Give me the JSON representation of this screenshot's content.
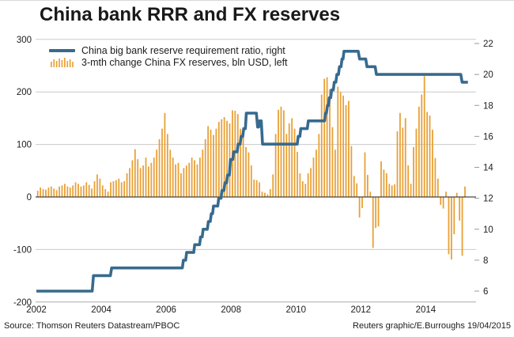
{
  "title": "China bank RRR and FX reserves",
  "source": "Source: Thomson Reuters Datastream/PBOC",
  "credit": "Reuters graphic/E.Burroughs 19/04/2015",
  "legend": [
    {
      "label": "China big bank reserve requirement ratio, right",
      "color": "#376a8e",
      "swatch": "line-icon"
    },
    {
      "label": "3-mth change China FX reserves, bln USD, left",
      "color": "#e8a138",
      "swatch": "bars-icon"
    }
  ],
  "colors": {
    "line": "#376a8e",
    "bars": "#e8a138",
    "grid": "#cacaca",
    "axis_line": "#ababab",
    "zero_line": "#1a1a1a",
    "tick_mark": "#999999",
    "text": "#1c1c1c"
  },
  "chart_data": {
    "type": "bar",
    "title": "China bank RRR and FX reserves",
    "x_axis": {
      "range": [
        2002,
        2015.55
      ],
      "ticks": [
        2002,
        2004,
        2006,
        2008,
        2010,
        2012,
        2014
      ],
      "grid": false
    },
    "left_axis": {
      "label": "3-mth change China FX reserves, bln USD",
      "range": [
        -200,
        300
      ],
      "ticks": [
        300,
        200,
        100,
        0,
        -100,
        -200
      ],
      "grid": true
    },
    "right_axis": {
      "label": "China big bank reserve requirement ratio, %",
      "range": [
        6,
        22
      ],
      "ticks": [
        22,
        20,
        18,
        16,
        14,
        12,
        10,
        8,
        6
      ],
      "grid": false
    },
    "series": [
      {
        "name": "3-mth change China FX reserves, bln USD",
        "type": "bar",
        "axis": "left",
        "color": "#e8a138",
        "start_year": 2002,
        "interval_months": 1,
        "values": [
          12,
          18,
          15,
          14,
          18,
          20,
          16,
          13,
          20,
          22,
          25,
          20,
          18,
          22,
          28,
          25,
          20,
          22,
          28,
          23,
          16,
          30,
          43,
          35,
          22,
          15,
          10,
          28,
          30,
          32,
          35,
          28,
          30,
          45,
          55,
          70,
          91,
          72,
          55,
          60,
          75,
          58,
          65,
          75,
          90,
          110,
          130,
          160,
          120,
          90,
          75,
          62,
          65,
          45,
          55,
          60,
          65,
          75,
          70,
          62,
          75,
          90,
          110,
          135,
          128,
          118,
          130,
          143,
          148,
          152,
          145,
          140,
          165,
          164,
          158,
          130,
          122,
          95,
          85,
          60,
          33,
          32,
          28,
          10,
          8,
          5,
          15,
          43,
          120,
          166,
          172,
          165,
          120,
          140,
          150,
          130,
          86,
          45,
          30,
          25,
          45,
          55,
          75,
          90,
          120,
          195,
          225,
          228,
          205,
          133,
          90,
          210,
          200,
          193,
          175,
          183,
          97,
          40,
          26,
          -39,
          -21,
          85,
          42,
          10,
          -97,
          -59,
          -56,
          68,
          52,
          45,
          25,
          22,
          24,
          125,
          160,
          132,
          150,
          60,
          25,
          95,
          130,
          172,
          195,
          230,
          162,
          155,
          128,
          74,
          35,
          -15,
          -22,
          10,
          -109,
          -119,
          -71,
          8,
          -45,
          -112,
          20
        ]
      },
      {
        "name": "China big bank reserve requirement ratio",
        "type": "line",
        "axis": "right",
        "color": "#376a8e",
        "points": [
          [
            2002.0,
            6
          ],
          [
            2003.72,
            6
          ],
          [
            2003.76,
            7
          ],
          [
            2004.28,
            7
          ],
          [
            2004.32,
            7.5
          ],
          [
            2006.5,
            7.5
          ],
          [
            2006.53,
            8
          ],
          [
            2006.6,
            8
          ],
          [
            2006.63,
            8.5
          ],
          [
            2006.85,
            8.5
          ],
          [
            2006.88,
            9
          ],
          [
            2007.03,
            9
          ],
          [
            2007.06,
            9.5
          ],
          [
            2007.11,
            9.5
          ],
          [
            2007.14,
            10
          ],
          [
            2007.27,
            10
          ],
          [
            2007.3,
            10.5
          ],
          [
            2007.36,
            10.5
          ],
          [
            2007.39,
            11
          ],
          [
            2007.43,
            11
          ],
          [
            2007.46,
            11.5
          ],
          [
            2007.59,
            11.5
          ],
          [
            2007.62,
            12
          ],
          [
            2007.69,
            12
          ],
          [
            2007.72,
            12.5
          ],
          [
            2007.78,
            12.5
          ],
          [
            2007.81,
            13
          ],
          [
            2007.86,
            13
          ],
          [
            2007.89,
            13.5
          ],
          [
            2007.95,
            13.5
          ],
          [
            2007.98,
            14.5
          ],
          [
            2008.05,
            14.5
          ],
          [
            2008.08,
            15
          ],
          [
            2008.19,
            15
          ],
          [
            2008.22,
            15.5
          ],
          [
            2008.28,
            15.5
          ],
          [
            2008.31,
            16
          ],
          [
            2008.36,
            16
          ],
          [
            2008.39,
            16.5
          ],
          [
            2008.44,
            16.5
          ],
          [
            2008.47,
            17.5
          ],
          [
            2008.78,
            17.5
          ],
          [
            2008.82,
            16.6
          ],
          [
            2008.85,
            16.6
          ],
          [
            2008.88,
            17
          ],
          [
            2008.93,
            17
          ],
          [
            2008.97,
            15.5
          ],
          [
            2010.04,
            15.5
          ],
          [
            2010.07,
            16
          ],
          [
            2010.12,
            16
          ],
          [
            2010.15,
            16.5
          ],
          [
            2010.35,
            16.5
          ],
          [
            2010.38,
            17
          ],
          [
            2010.88,
            17
          ],
          [
            2010.91,
            17.5
          ],
          [
            2010.94,
            17.5
          ],
          [
            2010.97,
            18
          ],
          [
            2011.0,
            18
          ],
          [
            2011.03,
            18.5
          ],
          [
            2011.07,
            18.5
          ],
          [
            2011.1,
            19
          ],
          [
            2011.15,
            19
          ],
          [
            2011.18,
            19.5
          ],
          [
            2011.23,
            19.5
          ],
          [
            2011.26,
            20
          ],
          [
            2011.31,
            20
          ],
          [
            2011.34,
            20.5
          ],
          [
            2011.39,
            20.5
          ],
          [
            2011.42,
            21
          ],
          [
            2011.45,
            21
          ],
          [
            2011.48,
            21.5
          ],
          [
            2011.92,
            21.5
          ],
          [
            2011.96,
            21
          ],
          [
            2012.15,
            21
          ],
          [
            2012.19,
            20.5
          ],
          [
            2012.44,
            20.5
          ],
          [
            2012.48,
            20
          ],
          [
            2015.08,
            20
          ],
          [
            2015.12,
            19.5
          ],
          [
            2015.3,
            19.5
          ]
        ]
      }
    ]
  }
}
